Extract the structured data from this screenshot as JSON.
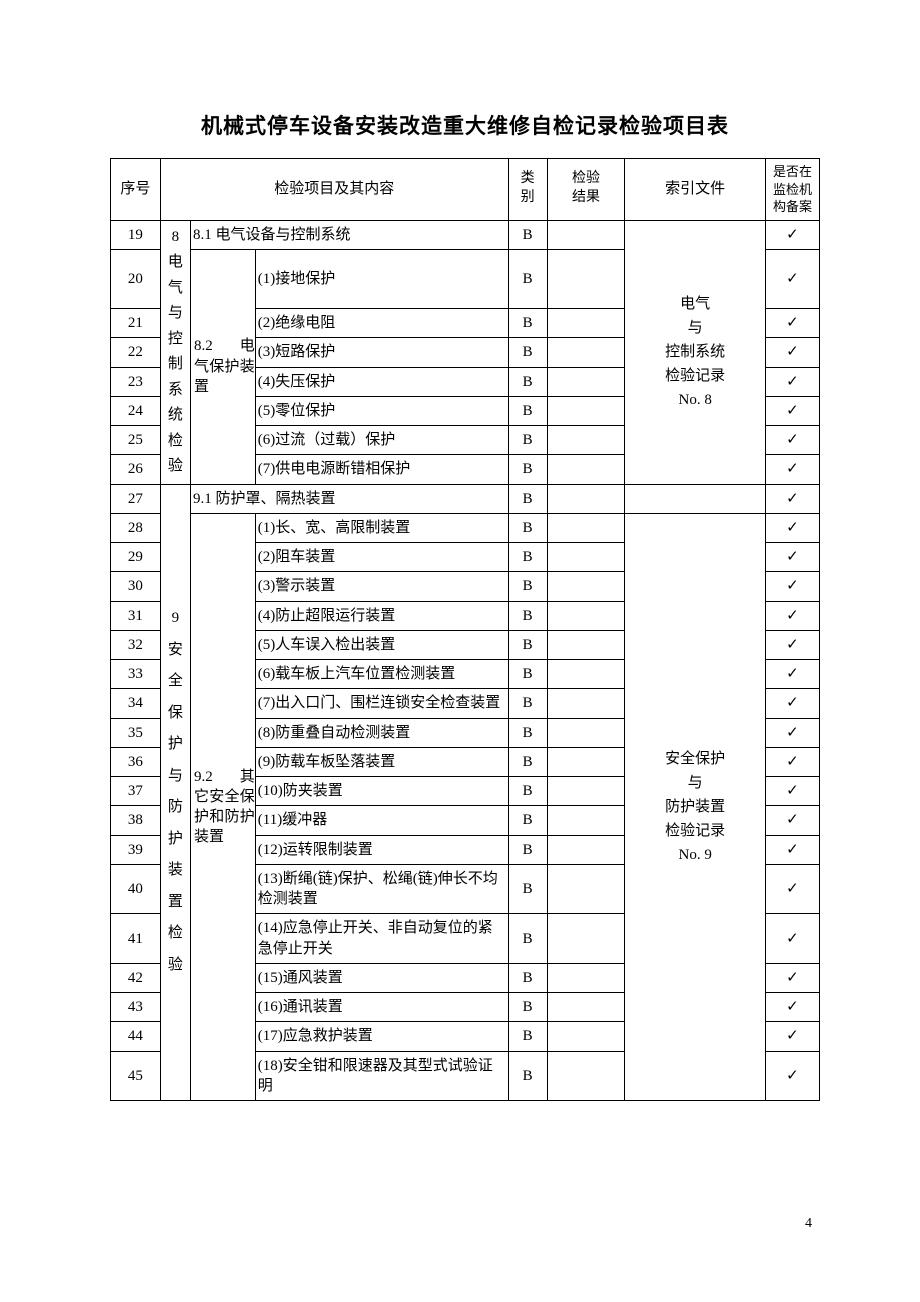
{
  "title": "机械式停车设备安装改造重大维修自检记录检验项目表",
  "page_number": "4",
  "check_mark": "✓",
  "header": {
    "seq": "序号",
    "content": "检验项目及其内容",
    "category": "类\n别",
    "result": "检验\n结果",
    "index": "索引文件",
    "file": "是否在\n监检机\n构备案"
  },
  "group8": {
    "label": "8\n电\n气\n与\n控\n制\n系\n统\n检\n验",
    "sec81": "8.1 电气设备与控制系统",
    "sec82": "8.2　电气保护装置",
    "index": "电气\n与\n控制系统\n检验记录\nNo. 8",
    "rows": {
      "r19": {
        "seq": "19",
        "cat": "B"
      },
      "r20": {
        "seq": "20",
        "item": "(1)接地保护",
        "cat": "B"
      },
      "r21": {
        "seq": "21",
        "item": "(2)绝缘电阻",
        "cat": "B"
      },
      "r22": {
        "seq": "22",
        "item": "(3)短路保护",
        "cat": "B"
      },
      "r23": {
        "seq": "23",
        "item": "(4)失压保护",
        "cat": "B"
      },
      "r24": {
        "seq": "24",
        "item": "(5)零位保护",
        "cat": "B"
      },
      "r25": {
        "seq": "25",
        "item": "(6)过流（过载）保护",
        "cat": "B"
      },
      "r26": {
        "seq": "26",
        "item": "(7)供电电源断错相保护",
        "cat": "B"
      }
    }
  },
  "group9": {
    "label": "9\n安\n全\n保\n护\n与\n防\n护\n装\n置\n检\n验",
    "sec91": "9.1 防护罩、隔热装置",
    "sec92": "9.2　其它安全保护和防护装置",
    "index": "安全保护\n与\n防护装置\n检验记录\nNo. 9",
    "rows": {
      "r27": {
        "seq": "27",
        "cat": "B"
      },
      "r28": {
        "seq": "28",
        "item": "(1)长、宽、高限制装置",
        "cat": "B"
      },
      "r29": {
        "seq": "29",
        "item": "(2)阻车装置",
        "cat": "B"
      },
      "r30": {
        "seq": "30",
        "item": "(3)警示装置",
        "cat": "B"
      },
      "r31": {
        "seq": "31",
        "item": "(4)防止超限运行装置",
        "cat": "B"
      },
      "r32": {
        "seq": "32",
        "item": "(5)人车误入检出装置",
        "cat": "B"
      },
      "r33": {
        "seq": "33",
        "item": "(6)载车板上汽车位置检测装置",
        "cat": "B"
      },
      "r34": {
        "seq": "34",
        "item": "(7)出入口门、围栏连锁安全检查装置",
        "cat": "B"
      },
      "r35": {
        "seq": "35",
        "item": "(8)防重叠自动检测装置",
        "cat": "B"
      },
      "r36": {
        "seq": "36",
        "item": "(9)防载车板坠落装置",
        "cat": "B"
      },
      "r37": {
        "seq": "37",
        "item": "(10)防夹装置",
        "cat": "B"
      },
      "r38": {
        "seq": "38",
        "item": "(11)缓冲器",
        "cat": "B"
      },
      "r39": {
        "seq": "39",
        "item": "(12)运转限制装置",
        "cat": "B"
      },
      "r40": {
        "seq": "40",
        "item": "(13)断绳(链)保护、松绳(链)伸长不均检测装置",
        "cat": "B"
      },
      "r41": {
        "seq": "41",
        "item": "(14)应急停止开关、非自动复位的紧急停止开关",
        "cat": "B"
      },
      "r42": {
        "seq": "42",
        "item": "(15)通风装置",
        "cat": "B"
      },
      "r43": {
        "seq": "43",
        "item": "(16)通讯装置",
        "cat": "B"
      },
      "r44": {
        "seq": "44",
        "item": "(17)应急救护装置",
        "cat": "B"
      },
      "r45": {
        "seq": "45",
        "item": "(18)安全钳和限速器及其型式试验证明",
        "cat": "B"
      }
    }
  }
}
